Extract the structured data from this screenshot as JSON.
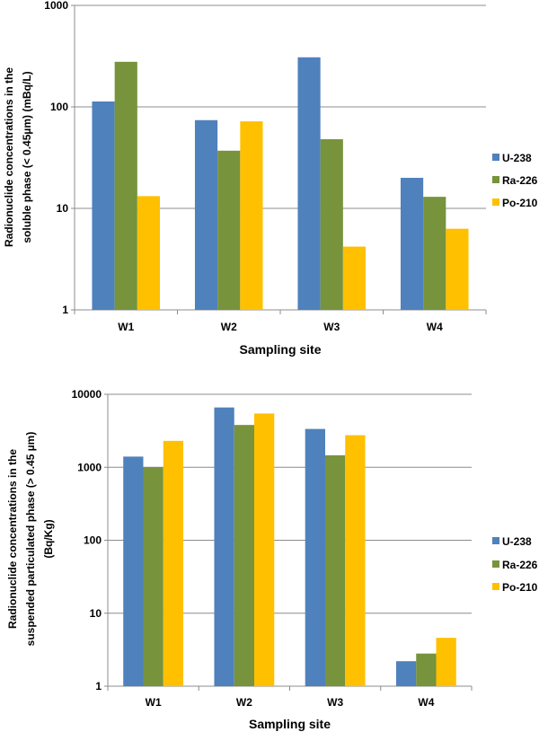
{
  "chart_data": [
    {
      "type": "bar",
      "title": "",
      "xlabel": "Sampling site",
      "ylabel": [
        "Radionuclide concentrations in the",
        "soluble phase (< 0.45µm) (mBq/L)"
      ],
      "yscale": "log",
      "ylim": [
        1,
        1000
      ],
      "yticks": [
        "1",
        "10",
        "100",
        "1000"
      ],
      "grid": true,
      "legend": "right",
      "categories": [
        "W1",
        "W2",
        "W3",
        "W4"
      ],
      "series": [
        {
          "name": "U-238",
          "color": "#4F81BD",
          "values": [
            113,
            74,
            308,
            20
          ]
        },
        {
          "name": "Ra-226",
          "color": "#77933C",
          "values": [
            278,
            37,
            48,
            13
          ]
        },
        {
          "name": "Po-210",
          "color": "#FFC000",
          "values": [
            13.2,
            72,
            4.2,
            6.3
          ]
        }
      ]
    },
    {
      "type": "bar",
      "title": "",
      "xlabel": "Sampling site",
      "ylabel": [
        "Radionuclide concentrations in the",
        "suspended particulated phase (> 0.45 µm)",
        "(Bq/Kg)"
      ],
      "yscale": "log",
      "ylim": [
        1,
        10000
      ],
      "yticks": [
        "1",
        "10",
        "100",
        "1000",
        "10000"
      ],
      "grid": true,
      "legend": "right",
      "categories": [
        "W1",
        "W2",
        "W3",
        "W4"
      ],
      "series": [
        {
          "name": "U-238",
          "color": "#4F81BD",
          "values": [
            1400,
            6600,
            3350,
            2.2
          ]
        },
        {
          "name": "Ra-226",
          "color": "#77933C",
          "values": [
            1000,
            3800,
            1460,
            2.8
          ]
        },
        {
          "name": "Po-210",
          "color": "#FFC000",
          "values": [
            2300,
            5450,
            2750,
            4.6
          ]
        }
      ]
    }
  ]
}
